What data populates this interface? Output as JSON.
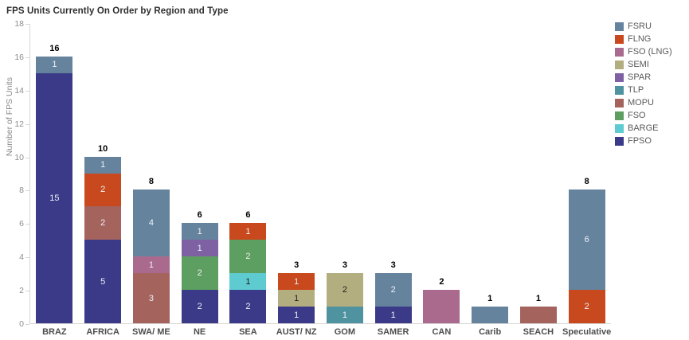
{
  "header": {
    "title": "FPS Units Currently On Order by Region and Type"
  },
  "chart_data": {
    "type": "bar",
    "stacked": true,
    "title": "FPS Units Currently On Order by Region and Type",
    "xlabel": "",
    "ylabel": "Number of FPS Units",
    "ylim": [
      0,
      18
    ],
    "yticks": [
      0,
      2,
      4,
      6,
      8,
      10,
      12,
      14,
      16,
      18
    ],
    "grid": false,
    "legend_position": "right",
    "legend": [
      {
        "label": "FSRU",
        "color": "#66839e"
      },
      {
        "label": "FLNG",
        "color": "#c8491d"
      },
      {
        "label": "FSO (LNG)",
        "color": "#aa6a8d"
      },
      {
        "label": "SEMI",
        "color": "#b3ae80"
      },
      {
        "label": "SPAR",
        "color": "#7d61a3"
      },
      {
        "label": "TLP",
        "color": "#4f93a0"
      },
      {
        "label": "MOPU",
        "color": "#a5635e"
      },
      {
        "label": "FSO",
        "color": "#5d9e61"
      },
      {
        "label": "BARGE",
        "color": "#5ecbd1"
      },
      {
        "label": "FPSO",
        "color": "#3a3a88"
      }
    ],
    "light_segment_types": [
      "SEMI",
      "BARGE"
    ],
    "categories": [
      "BRAZ",
      "AFRICA",
      "SWA/ ME",
      "NE",
      "SEA",
      "AUST/ NZ",
      "GOM",
      "SAMER",
      "CAN",
      "Carib",
      "SEACH",
      "Speculative"
    ],
    "bars": [
      {
        "category": "BRAZ",
        "total": 16,
        "segments": [
          {
            "type": "FPSO",
            "value": 15,
            "show_label": true
          },
          {
            "type": "FSRU",
            "value": 1,
            "show_label": true
          }
        ]
      },
      {
        "category": "AFRICA",
        "total": 10,
        "segments": [
          {
            "type": "FPSO",
            "value": 5,
            "show_label": true
          },
          {
            "type": "MOPU",
            "value": 2,
            "show_label": true
          },
          {
            "type": "FLNG",
            "value": 2,
            "show_label": true
          },
          {
            "type": "FSRU",
            "value": 1,
            "show_label": true
          }
        ]
      },
      {
        "category": "SWA/ ME",
        "total": 8,
        "segments": [
          {
            "type": "MOPU",
            "value": 3,
            "show_label": true
          },
          {
            "type": "FSO (LNG)",
            "value": 1,
            "show_label": true
          },
          {
            "type": "FSRU",
            "value": 4,
            "show_label": true
          }
        ]
      },
      {
        "category": "NE",
        "total": 6,
        "segments": [
          {
            "type": "FPSO",
            "value": 2,
            "show_label": true
          },
          {
            "type": "FSO",
            "value": 2,
            "show_label": true
          },
          {
            "type": "SPAR",
            "value": 1,
            "show_label": true
          },
          {
            "type": "FSRU",
            "value": 1,
            "show_label": true
          }
        ]
      },
      {
        "category": "SEA",
        "total": 6,
        "segments": [
          {
            "type": "FPSO",
            "value": 2,
            "show_label": true
          },
          {
            "type": "BARGE",
            "value": 1,
            "show_label": true
          },
          {
            "type": "FSO",
            "value": 2,
            "show_label": true
          },
          {
            "type": "FLNG",
            "value": 1,
            "show_label": true
          }
        ]
      },
      {
        "category": "AUST/ NZ",
        "total": 3,
        "segments": [
          {
            "type": "FPSO",
            "value": 1,
            "show_label": true
          },
          {
            "type": "SEMI",
            "value": 1,
            "show_label": true
          },
          {
            "type": "FLNG",
            "value": 1,
            "show_label": true
          }
        ]
      },
      {
        "category": "GOM",
        "total": 3,
        "segments": [
          {
            "type": "TLP",
            "value": 1,
            "show_label": true
          },
          {
            "type": "SEMI",
            "value": 2,
            "show_label": true
          }
        ]
      },
      {
        "category": "SAMER",
        "total": 3,
        "segments": [
          {
            "type": "FPSO",
            "value": 1,
            "show_label": true
          },
          {
            "type": "FSRU",
            "value": 2,
            "show_label": true
          }
        ]
      },
      {
        "category": "CAN",
        "total": 2,
        "segments": [
          {
            "type": "FSO (LNG)",
            "value": 2,
            "show_label": false
          }
        ]
      },
      {
        "category": "Carib",
        "total": 1,
        "segments": [
          {
            "type": "FSRU",
            "value": 1,
            "show_label": false
          }
        ]
      },
      {
        "category": "SEACH",
        "total": 1,
        "segments": [
          {
            "type": "MOPU",
            "value": 1,
            "show_label": false
          }
        ]
      },
      {
        "category": "Speculative",
        "total": 8,
        "segments": [
          {
            "type": "FLNG",
            "value": 2,
            "show_label": true
          },
          {
            "type": "FSRU",
            "value": 6,
            "show_label": true
          }
        ]
      }
    ]
  }
}
